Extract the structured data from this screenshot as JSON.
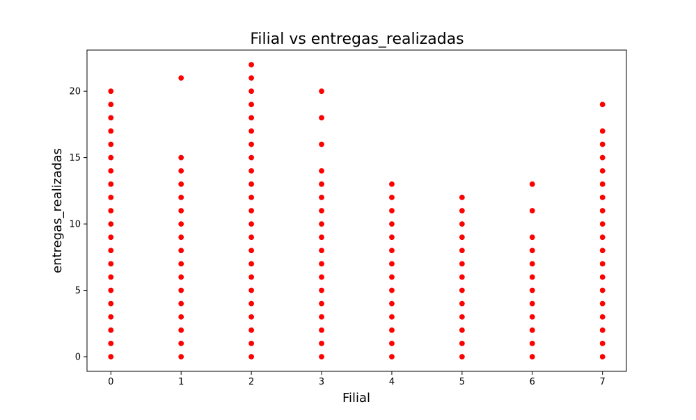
{
  "chart_data": {
    "type": "scatter",
    "title": "Filial vs entregas_realizadas",
    "xlabel": "Filial",
    "ylabel": "entregas_realizadas",
    "xlim": [
      -0.34,
      7.34
    ],
    "ylim": [
      -1.1,
      23.1
    ],
    "x_ticks": [
      0,
      1,
      2,
      3,
      4,
      5,
      6,
      7
    ],
    "y_ticks": [
      0,
      5,
      10,
      15,
      20
    ],
    "marker_color": "#ff0000",
    "grid": false,
    "series": [
      {
        "points": [
          [
            0,
            0
          ],
          [
            0,
            1
          ],
          [
            0,
            2
          ],
          [
            0,
            3
          ],
          [
            0,
            4
          ],
          [
            0,
            5
          ],
          [
            0,
            6
          ],
          [
            0,
            7
          ],
          [
            0,
            8
          ],
          [
            0,
            9
          ],
          [
            0,
            10
          ],
          [
            0,
            11
          ],
          [
            0,
            12
          ],
          [
            0,
            13
          ],
          [
            0,
            14
          ],
          [
            0,
            15
          ],
          [
            0,
            16
          ],
          [
            0,
            17
          ],
          [
            0,
            18
          ],
          [
            0,
            19
          ],
          [
            0,
            20
          ],
          [
            1,
            0
          ],
          [
            1,
            1
          ],
          [
            1,
            2
          ],
          [
            1,
            3
          ],
          [
            1,
            4
          ],
          [
            1,
            5
          ],
          [
            1,
            6
          ],
          [
            1,
            7
          ],
          [
            1,
            8
          ],
          [
            1,
            9
          ],
          [
            1,
            10
          ],
          [
            1,
            11
          ],
          [
            1,
            12
          ],
          [
            1,
            13
          ],
          [
            1,
            14
          ],
          [
            1,
            15
          ],
          [
            1,
            21
          ],
          [
            2,
            0
          ],
          [
            2,
            1
          ],
          [
            2,
            2
          ],
          [
            2,
            3
          ],
          [
            2,
            4
          ],
          [
            2,
            5
          ],
          [
            2,
            6
          ],
          [
            2,
            7
          ],
          [
            2,
            8
          ],
          [
            2,
            9
          ],
          [
            2,
            10
          ],
          [
            2,
            11
          ],
          [
            2,
            12
          ],
          [
            2,
            13
          ],
          [
            2,
            14
          ],
          [
            2,
            15
          ],
          [
            2,
            16
          ],
          [
            2,
            17
          ],
          [
            2,
            18
          ],
          [
            2,
            19
          ],
          [
            2,
            20
          ],
          [
            2,
            21
          ],
          [
            2,
            22
          ],
          [
            3,
            0
          ],
          [
            3,
            1
          ],
          [
            3,
            2
          ],
          [
            3,
            3
          ],
          [
            3,
            4
          ],
          [
            3,
            5
          ],
          [
            3,
            6
          ],
          [
            3,
            7
          ],
          [
            3,
            8
          ],
          [
            3,
            9
          ],
          [
            3,
            10
          ],
          [
            3,
            11
          ],
          [
            3,
            12
          ],
          [
            3,
            13
          ],
          [
            3,
            14
          ],
          [
            3,
            16
          ],
          [
            3,
            18
          ],
          [
            3,
            20
          ],
          [
            4,
            0
          ],
          [
            4,
            1
          ],
          [
            4,
            2
          ],
          [
            4,
            3
          ],
          [
            4,
            4
          ],
          [
            4,
            5
          ],
          [
            4,
            6
          ],
          [
            4,
            7
          ],
          [
            4,
            8
          ],
          [
            4,
            9
          ],
          [
            4,
            10
          ],
          [
            4,
            11
          ],
          [
            4,
            12
          ],
          [
            4,
            13
          ],
          [
            5,
            0
          ],
          [
            5,
            1
          ],
          [
            5,
            2
          ],
          [
            5,
            3
          ],
          [
            5,
            4
          ],
          [
            5,
            5
          ],
          [
            5,
            6
          ],
          [
            5,
            7
          ],
          [
            5,
            8
          ],
          [
            5,
            9
          ],
          [
            5,
            10
          ],
          [
            5,
            11
          ],
          [
            5,
            12
          ],
          [
            6,
            0
          ],
          [
            6,
            1
          ],
          [
            6,
            2
          ],
          [
            6,
            3
          ],
          [
            6,
            4
          ],
          [
            6,
            5
          ],
          [
            6,
            6
          ],
          [
            6,
            7
          ],
          [
            6,
            8
          ],
          [
            6,
            9
          ],
          [
            6,
            11
          ],
          [
            6,
            13
          ],
          [
            7,
            0
          ],
          [
            7,
            1
          ],
          [
            7,
            2
          ],
          [
            7,
            3
          ],
          [
            7,
            4
          ],
          [
            7,
            5
          ],
          [
            7,
            6
          ],
          [
            7,
            7
          ],
          [
            7,
            8
          ],
          [
            7,
            9
          ],
          [
            7,
            10
          ],
          [
            7,
            11
          ],
          [
            7,
            12
          ],
          [
            7,
            13
          ],
          [
            7,
            14
          ],
          [
            7,
            15
          ],
          [
            7,
            16
          ],
          [
            7,
            17
          ],
          [
            7,
            19
          ]
        ]
      }
    ]
  }
}
